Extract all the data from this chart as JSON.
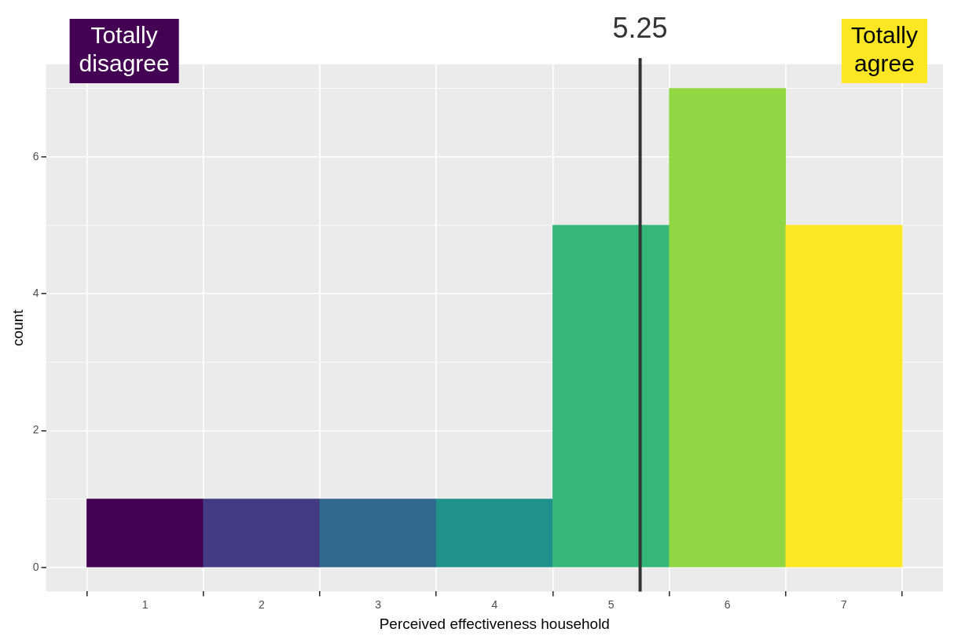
{
  "chart_data": {
    "type": "histogram",
    "xlabel": "Perceived effectiveness household",
    "ylabel": "count",
    "bins": [
      0.5,
      1.5,
      2.5,
      3.5,
      4.5,
      5.5,
      6.5,
      7.5
    ],
    "values": [
      1,
      1,
      1,
      1,
      5,
      7,
      5
    ],
    "colors": [
      "#440154",
      "#443983",
      "#31688e",
      "#21918c",
      "#35b779",
      "#90d743",
      "#fde725"
    ],
    "xlim": [
      0.15,
      7.85
    ],
    "xticks": [
      1,
      2,
      3,
      4,
      5,
      6,
      7
    ],
    "ylim": [
      -0.35,
      7.35
    ],
    "yticks": [
      0,
      2,
      4,
      6
    ],
    "grid": true,
    "ref_lines": [
      {
        "axis": "x",
        "value": 5.25,
        "label": "5.25",
        "color": "#333333"
      }
    ],
    "annotations": [
      "Totally disagree",
      "Totally agree"
    ]
  }
}
